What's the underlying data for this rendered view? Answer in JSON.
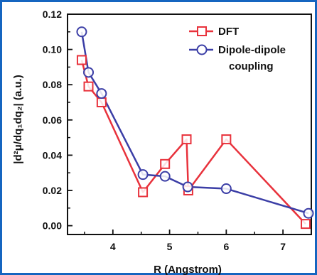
{
  "chart_data": {
    "type": "line",
    "xlabel": "R (Angstrom)",
    "ylabel": "|d²μ/dq₁dq₂| (a.u.)",
    "xlim": [
      3.2,
      7.5
    ],
    "ylim": [
      -0.005,
      0.12
    ],
    "x_ticks": [
      4,
      5,
      6,
      7
    ],
    "y_ticks": [
      0.0,
      0.02,
      0.04,
      0.06,
      0.08,
      0.1,
      0.12
    ],
    "grid": false,
    "legend_position": "top-right",
    "series": [
      {
        "name": "DFT",
        "color": "#e8323c",
        "marker": "square",
        "x": [
          3.45,
          3.57,
          3.8,
          4.53,
          4.92,
          5.3,
          5.33,
          6.0,
          7.4
        ],
        "y": [
          0.094,
          0.079,
          0.07,
          0.019,
          0.035,
          0.049,
          0.02,
          0.049,
          0.001
        ]
      },
      {
        "name": "Dipole-dipole coupling",
        "color": "#3b3ea6",
        "marker": "circle",
        "x": [
          3.45,
          3.57,
          3.8,
          4.53,
          4.92,
          5.32,
          6.0,
          7.45
        ],
        "y": [
          0.11,
          0.087,
          0.075,
          0.029,
          0.028,
          0.022,
          0.021,
          0.007
        ]
      }
    ]
  }
}
